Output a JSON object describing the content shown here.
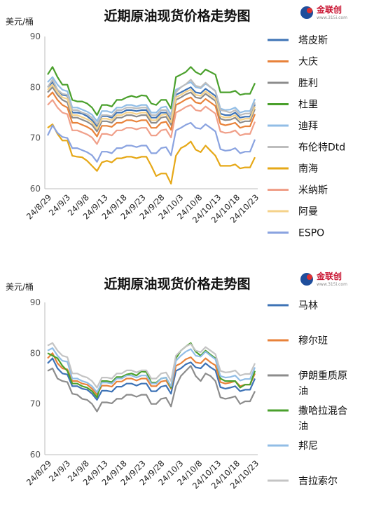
{
  "logo": {
    "name": "金联创",
    "url": "www.315i.com"
  },
  "chart_data": [
    {
      "type": "line",
      "title": "近期原油现货价格走势图",
      "ylabel": "美元/桶",
      "ylim": [
        60,
        90
      ],
      "yticks": [
        60,
        70,
        80,
        90
      ],
      "x_tick_labels": [
        "24/8/29",
        "24/9/3",
        "24/9/8",
        "24/9/13",
        "24/9/18",
        "24/9/23",
        "24/9/28",
        "24/10/3",
        "24/10/8",
        "24/10/13",
        "24/10/18",
        "24/10/23"
      ],
      "grid": false,
      "legend_position": "right",
      "series": [
        {
          "name": "塔皮斯",
          "color": "#3e73b6",
          "values": [
            80,
            81,
            79.5,
            78.5,
            78.3,
            75,
            75,
            74.8,
            74.3,
            73.5,
            72.3,
            74.3,
            74.3,
            74,
            75,
            75,
            75.5,
            75.5,
            75.3,
            75.5,
            75.5,
            74,
            74,
            75,
            75,
            73.6,
            78.5,
            79,
            79.5,
            80,
            79,
            78.8,
            79.7,
            79,
            78.3,
            74.8,
            74.5,
            74.5,
            75,
            74,
            74.2,
            74.2,
            76.6
          ]
        },
        {
          "name": "大庆",
          "color": "#e8823a",
          "values": [
            78,
            79,
            77.5,
            76.5,
            76,
            73,
            73,
            72.6,
            72.2,
            71.6,
            70.3,
            72.4,
            72.4,
            72.2,
            73,
            73,
            73.5,
            73.5,
            73.2,
            73.5,
            73.5,
            72,
            72,
            73,
            73.2,
            71.6,
            76.5,
            77,
            77.6,
            78,
            77,
            76.8,
            77.7,
            77,
            76.3,
            72.8,
            72.5,
            72.7,
            73,
            72,
            72.3,
            72.3,
            74.7
          ]
        },
        {
          "name": "胜利",
          "color": "#8c8c8c",
          "values": [
            79,
            80,
            78.5,
            77.5,
            77,
            74,
            74,
            73.6,
            73.2,
            72.6,
            71.3,
            73.3,
            73.3,
            73,
            74,
            74,
            74.5,
            74.5,
            74.2,
            74.5,
            74.5,
            73,
            73,
            74,
            74.2,
            72.6,
            77.5,
            78,
            78.6,
            79,
            78,
            77.8,
            78.7,
            78,
            77.3,
            73.8,
            73.5,
            73.6,
            74,
            73,
            73.3,
            73.3,
            75.7
          ]
        },
        {
          "name": "杜里",
          "color": "#4aa02c",
          "values": [
            82.5,
            84,
            82,
            80.5,
            80.5,
            77.5,
            77.2,
            77.2,
            76.8,
            76,
            74.5,
            76.5,
            76.5,
            76.2,
            77.5,
            77.5,
            78,
            78.3,
            78,
            78.4,
            78.3,
            76.8,
            76.5,
            77.5,
            77.5,
            75.8,
            82,
            82.5,
            83,
            84,
            83,
            82.5,
            83.5,
            83,
            82.5,
            79,
            79,
            79,
            79.3,
            78.5,
            78.7,
            78.7,
            80.8
          ]
        },
        {
          "name": "迪拜",
          "color": "#91bde6",
          "values": [
            81,
            82,
            80.5,
            79.5,
            79.2,
            76,
            76,
            75.6,
            75.2,
            74.6,
            73.3,
            75.3,
            75.3,
            75,
            76,
            76,
            76.5,
            76.5,
            76.2,
            76.5,
            76.5,
            75,
            75,
            76,
            76.2,
            74.6,
            79.5,
            80,
            80.6,
            81,
            80,
            79.8,
            80.7,
            80,
            79.3,
            75.8,
            75.5,
            75.6,
            76,
            75,
            75.3,
            75.3,
            77.7
          ]
        },
        {
          "name": "布伦特Dtd",
          "color": "#bdbdbd",
          "values": [
            80,
            81.5,
            79.5,
            78.7,
            78.5,
            75.5,
            75.5,
            75,
            74.7,
            74,
            72.7,
            74.5,
            74.5,
            74.3,
            75.5,
            75.5,
            76,
            76,
            75.8,
            76,
            76,
            74.5,
            74.5,
            75.5,
            75.5,
            74,
            79,
            80,
            80.6,
            81.5,
            80.3,
            80,
            80.9,
            80,
            79.2,
            75.5,
            75.3,
            75,
            75.5,
            74.5,
            74.8,
            74.8,
            77
          ]
        },
        {
          "name": "南海",
          "color": "#e6a817",
          "values": [
            72,
            72.7,
            70.8,
            69.5,
            69.5,
            66.5,
            66.3,
            66.2,
            65.5,
            64.5,
            63.5,
            65.2,
            65.5,
            65.2,
            66,
            66,
            66.3,
            66.3,
            66,
            66.3,
            66.3,
            64.5,
            62.5,
            63,
            63,
            61,
            66.5,
            68,
            68.5,
            69.3,
            67.7,
            67.2,
            68.5,
            67.5,
            66.5,
            64.5,
            64.5,
            64.5,
            64.8,
            64,
            64.2,
            64.2,
            66.2
          ]
        },
        {
          "name": "米纳斯",
          "color": "#f0a08a",
          "values": [
            76.5,
            77.5,
            76,
            75,
            74.7,
            71.5,
            71.5,
            71.1,
            70.7,
            70.1,
            68.8,
            70.8,
            70.8,
            70.5,
            71.5,
            71.5,
            72,
            72,
            71.7,
            72,
            72,
            70.5,
            70.5,
            71.5,
            71.7,
            70.1,
            75,
            75.5,
            76.1,
            76.5,
            75.5,
            75.3,
            76.2,
            75.5,
            74.8,
            71.3,
            71,
            71.1,
            71.5,
            70.5,
            70.8,
            70.8,
            73.2
          ]
        },
        {
          "name": "阿曼",
          "color": "#f5d28a",
          "values": [
            79.5,
            80.5,
            79,
            78,
            77.7,
            74.5,
            74.5,
            74.1,
            73.7,
            73.1,
            71.8,
            73.8,
            73.8,
            73.5,
            74.5,
            74.5,
            75,
            75,
            74.7,
            75,
            75,
            73.5,
            73.5,
            74.5,
            74.7,
            73.1,
            78,
            78.5,
            79.1,
            79.5,
            78.5,
            78.3,
            79.2,
            78.5,
            77.8,
            74.3,
            74,
            74.1,
            74.5,
            73.5,
            73.8,
            73.8,
            76.2
          ]
        },
        {
          "name": "ESPO",
          "color": "#8aa3e0",
          "values": [
            70.5,
            72.5,
            71,
            70.2,
            70,
            68,
            68,
            67.6,
            67.2,
            66.6,
            65.3,
            67.3,
            67.3,
            67,
            68,
            68,
            68.5,
            68.5,
            68.2,
            68.5,
            68.5,
            67,
            67,
            68,
            68.2,
            66.6,
            71.5,
            72,
            72.6,
            73,
            72,
            71.8,
            72.7,
            72,
            71.3,
            67.8,
            67.5,
            67.6,
            68,
            67,
            67.3,
            67.3,
            69.7
          ]
        }
      ]
    },
    {
      "type": "line",
      "title": "近期原油现货价格走势图",
      "ylabel": "美元/桶",
      "ylim": [
        60,
        90
      ],
      "yticks": [
        60,
        70,
        80,
        90
      ],
      "x_tick_labels": [
        "24/8/29",
        "24/9/3",
        "24/9/8",
        "24/9/13",
        "24/9/18",
        "24/9/23",
        "24/9/28",
        "24/10/3",
        "24/10/8",
        "24/10/13",
        "24/10/18",
        "24/10/23"
      ],
      "grid": false,
      "legend_position": "right",
      "series": [
        {
          "name": "马林",
          "color": "#3e73b6",
          "values": [
            78,
            79,
            77,
            76,
            75.8,
            73.5,
            73.5,
            73,
            72.8,
            72,
            70.8,
            72.6,
            72.6,
            72.4,
            73.4,
            73.4,
            74,
            74,
            73.6,
            74,
            74,
            72.5,
            72.5,
            73.4,
            73.6,
            72,
            76.5,
            77,
            77.8,
            78.2,
            77.2,
            77,
            78,
            77.2,
            76.6,
            73.3,
            73,
            73.2,
            73.5,
            72.5,
            72.8,
            72.8,
            75
          ]
        },
        {
          "name": "穆尔班",
          "color": "#e8823a",
          "values": [
            79,
            80,
            78,
            77,
            76.8,
            74.5,
            74.5,
            74,
            73.8,
            73,
            71.8,
            73.6,
            73.6,
            73.4,
            74.4,
            74.4,
            75,
            75,
            74.6,
            75,
            75,
            73.5,
            73.5,
            74.4,
            74.6,
            73,
            77.5,
            78,
            78.8,
            79.2,
            78.2,
            78,
            79,
            78.2,
            77.6,
            74.3,
            74,
            74.2,
            74.5,
            73.5,
            73.8,
            73.8,
            76
          ]
        },
        {
          "name": "伊朗重质原油",
          "color": "#8c8c8c",
          "values": [
            76.5,
            77,
            75,
            74.5,
            74.3,
            72,
            71.8,
            71,
            70.8,
            70,
            68.5,
            70.3,
            70.3,
            70.1,
            71,
            71,
            71.8,
            71.8,
            71.4,
            71.8,
            71.8,
            70,
            70,
            71,
            71.2,
            69.5,
            73.5,
            75.5,
            76.5,
            77.5,
            75.5,
            74.5,
            76,
            75.5,
            74.5,
            71.3,
            71,
            71.2,
            71.5,
            70,
            70.5,
            70.5,
            72.5
          ]
        },
        {
          "name": "撒哈拉混合油",
          "color": "#4aa02c",
          "values": [
            80,
            79.5,
            79,
            77.5,
            76.5,
            74,
            74,
            73.5,
            73.2,
            72.5,
            71.3,
            74.5,
            74.5,
            74.3,
            75.3,
            75.3,
            75.8,
            76,
            75.6,
            76.4,
            76.3,
            74.2,
            74.2,
            75,
            75.2,
            73.2,
            79,
            80.5,
            81.3,
            82,
            80.3,
            79.5,
            80.5,
            79.7,
            79,
            75,
            74.5,
            74.5,
            74.5,
            73.2,
            73.8,
            73.8,
            76.5
          ]
        },
        {
          "name": "邦尼",
          "color": "#91bde6",
          "values": [
            80.5,
            81,
            79.5,
            78.5,
            78.3,
            75,
            75,
            74.5,
            74.2,
            73.5,
            72.3,
            74.2,
            74.2,
            74,
            75,
            75,
            75.6,
            75.6,
            75.2,
            75.6,
            75.6,
            74,
            74,
            75,
            75.2,
            73.5,
            78.5,
            79.5,
            80.3,
            80.8,
            79.5,
            79.3,
            80.3,
            79.5,
            78.8,
            75.5,
            75.2,
            75.3,
            75.6,
            74.6,
            74.9,
            74.9,
            77.2
          ]
        },
        {
          "name": "吉拉索尔",
          "color": "#c4c4c4",
          "values": [
            81.5,
            82,
            80.5,
            79.5,
            79.2,
            76,
            76,
            75.5,
            75.2,
            74.5,
            73.2,
            75.2,
            75.2,
            75,
            76,
            76,
            76.6,
            76.6,
            76.2,
            76.6,
            76.6,
            75,
            75,
            76,
            76.2,
            74.5,
            79.5,
            80.5,
            81.3,
            81.8,
            80.5,
            80.2,
            81.2,
            80.5,
            79.8,
            76.5,
            76.2,
            76.3,
            76.6,
            75.6,
            75.9,
            75.9,
            78
          ]
        }
      ]
    }
  ]
}
